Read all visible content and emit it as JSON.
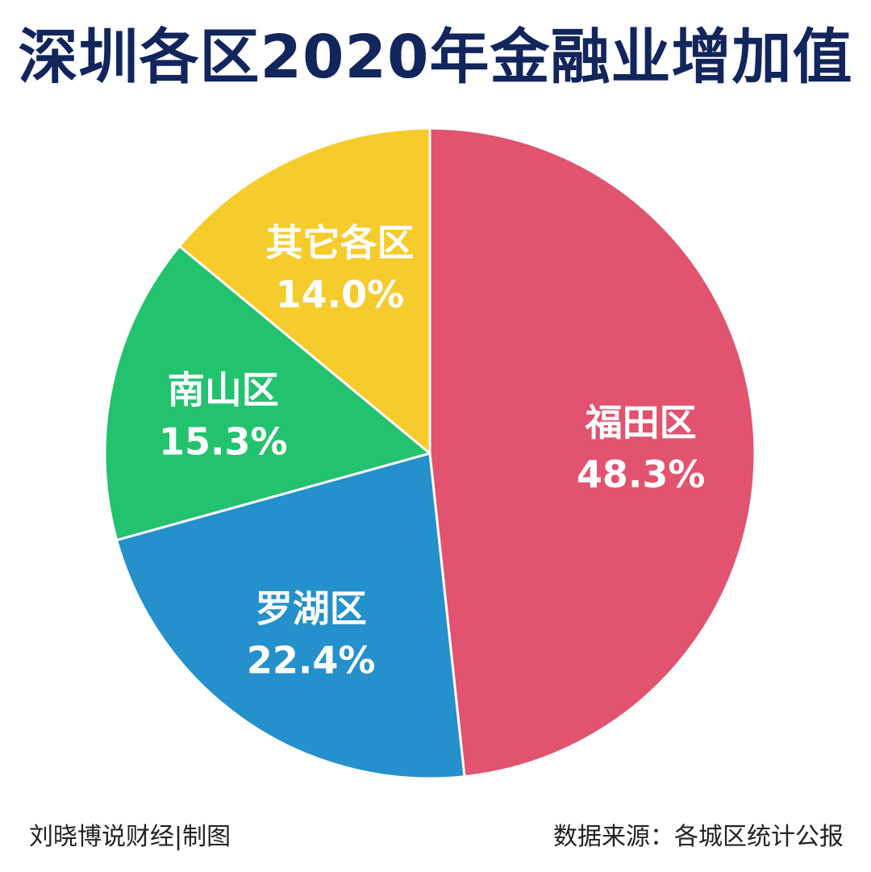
{
  "title": "深圳各区2020年金融业增加值",
  "footer": {
    "credit": "刘晓博说财经|制图",
    "source": "数据来源：各城区统计公报"
  },
  "chart_data": {
    "type": "pie",
    "title": "深圳各区2020年金融业增加值",
    "start_angle_deg": 0,
    "direction": "clockwise",
    "slices": [
      {
        "label": "福田区",
        "value": 48.3,
        "value_label": "48.3%",
        "color": "#e2536f"
      },
      {
        "label": "罗湖区",
        "value": 22.4,
        "value_label": "22.4%",
        "color": "#2490cc"
      },
      {
        "label": "南山区",
        "value": 15.3,
        "value_label": "15.3%",
        "color": "#23c26f"
      },
      {
        "label": "其它各区",
        "value": 14.0,
        "value_label": "14.0%",
        "color": "#f6cc2c"
      }
    ]
  }
}
